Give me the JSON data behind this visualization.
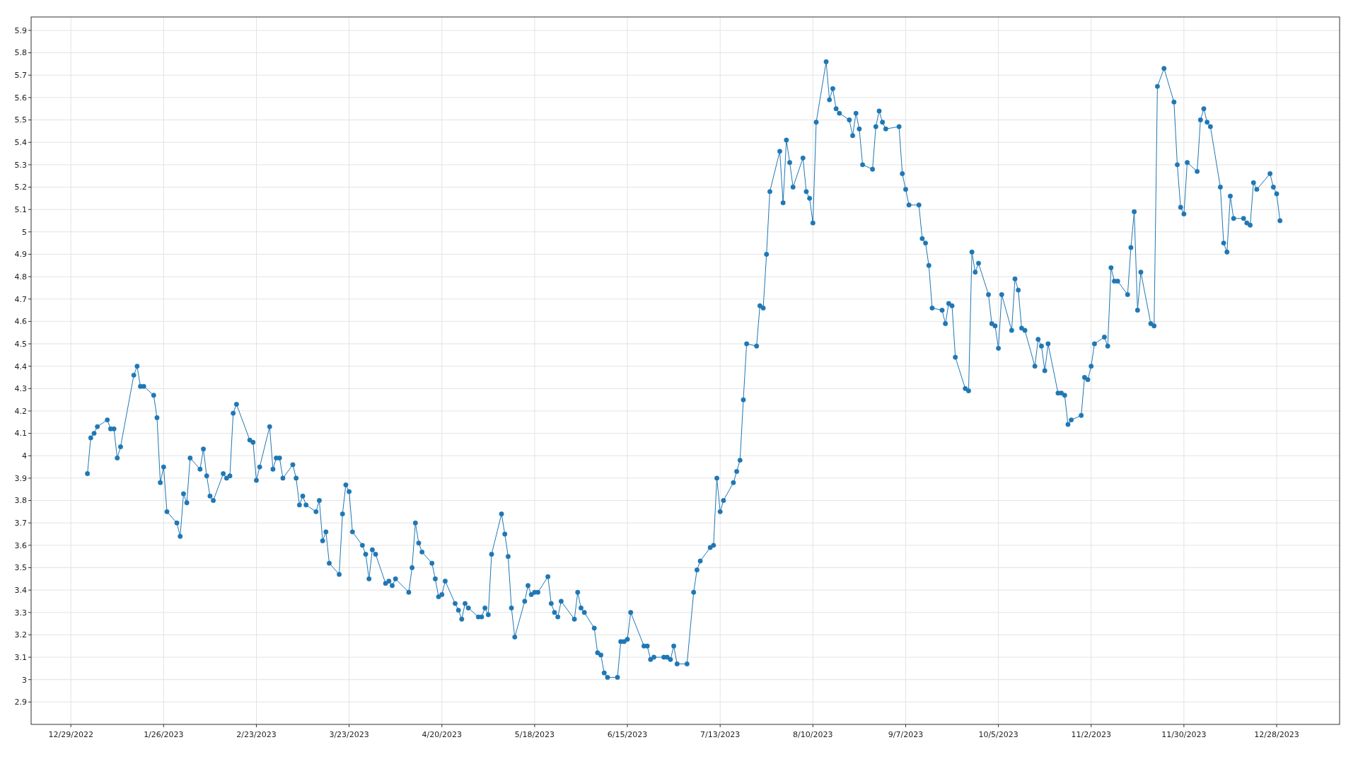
{
  "chart_data": {
    "type": "line",
    "xlim": [
      "2022-12-17",
      "2024-01-16"
    ],
    "ylim": [
      2.8,
      5.96
    ],
    "xticks": [
      {
        "value": "2022-12-29",
        "label": "12/29/2022"
      },
      {
        "value": "2023-01-26",
        "label": "1/26/2023"
      },
      {
        "value": "2023-02-23",
        "label": "2/23/2023"
      },
      {
        "value": "2023-03-23",
        "label": "3/23/2023"
      },
      {
        "value": "2023-04-20",
        "label": "4/20/2023"
      },
      {
        "value": "2023-05-18",
        "label": "5/18/2023"
      },
      {
        "value": "2023-06-15",
        "label": "6/15/2023"
      },
      {
        "value": "2023-07-13",
        "label": "7/13/2023"
      },
      {
        "value": "2023-08-10",
        "label": "8/10/2023"
      },
      {
        "value": "2023-09-07",
        "label": "9/7/2023"
      },
      {
        "value": "2023-10-05",
        "label": "10/5/2023"
      },
      {
        "value": "2023-11-02",
        "label": "11/2/2023"
      },
      {
        "value": "2023-11-30",
        "label": "11/30/2023"
      },
      {
        "value": "2023-12-28",
        "label": "12/28/2023"
      }
    ],
    "yticks": [
      2.9,
      3,
      3.1,
      3.2,
      3.3,
      3.4,
      3.5,
      3.6,
      3.7,
      3.8,
      3.9,
      4,
      4.1,
      4.2,
      4.3,
      4.4,
      4.5,
      4.6,
      4.7,
      4.8,
      4.9,
      5,
      5.1,
      5.2,
      5.3,
      5.4,
      5.5,
      5.6,
      5.7,
      5.8,
      5.9
    ],
    "grid": true,
    "marker": "circle",
    "line_style": "solid",
    "series": [
      {
        "color": "#1f77b4",
        "x": [
          "2023-01-03",
          "2023-01-04",
          "2023-01-05",
          "2023-01-06",
          "2023-01-09",
          "2023-01-10",
          "2023-01-11",
          "2023-01-12",
          "2023-01-13",
          "2023-01-17",
          "2023-01-18",
          "2023-01-19",
          "2023-01-20",
          "2023-01-23",
          "2023-01-24",
          "2023-01-25",
          "2023-01-26",
          "2023-01-27",
          "2023-01-30",
          "2023-01-31",
          "2023-02-01",
          "2023-02-02",
          "2023-02-03",
          "2023-02-06",
          "2023-02-07",
          "2023-02-08",
          "2023-02-09",
          "2023-02-10",
          "2023-02-13",
          "2023-02-14",
          "2023-02-15",
          "2023-02-16",
          "2023-02-17",
          "2023-02-21",
          "2023-02-22",
          "2023-02-23",
          "2023-02-24",
          "2023-02-27",
          "2023-02-28",
          "2023-03-01",
          "2023-03-02",
          "2023-03-03",
          "2023-03-06",
          "2023-03-07",
          "2023-03-08",
          "2023-03-09",
          "2023-03-10",
          "2023-03-13",
          "2023-03-14",
          "2023-03-15",
          "2023-03-16",
          "2023-03-17",
          "2023-03-20",
          "2023-03-21",
          "2023-03-22",
          "2023-03-23",
          "2023-03-24",
          "2023-03-27",
          "2023-03-28",
          "2023-03-29",
          "2023-03-30",
          "2023-03-31",
          "2023-04-03",
          "2023-04-04",
          "2023-04-05",
          "2023-04-06",
          "2023-04-10",
          "2023-04-11",
          "2023-04-12",
          "2023-04-13",
          "2023-04-14",
          "2023-04-17",
          "2023-04-18",
          "2023-04-19",
          "2023-04-20",
          "2023-04-21",
          "2023-04-24",
          "2023-04-25",
          "2023-04-26",
          "2023-04-27",
          "2023-04-28",
          "2023-05-01",
          "2023-05-02",
          "2023-05-03",
          "2023-05-04",
          "2023-05-05",
          "2023-05-08",
          "2023-05-09",
          "2023-05-10",
          "2023-05-11",
          "2023-05-12",
          "2023-05-15",
          "2023-05-16",
          "2023-05-17",
          "2023-05-18",
          "2023-05-19",
          "2023-05-22",
          "2023-05-23",
          "2023-05-24",
          "2023-05-25",
          "2023-05-26",
          "2023-05-30",
          "2023-05-31",
          "2023-06-01",
          "2023-06-02",
          "2023-06-05",
          "2023-06-06",
          "2023-06-07",
          "2023-06-08",
          "2023-06-09",
          "2023-06-12",
          "2023-06-13",
          "2023-06-14",
          "2023-06-15",
          "2023-06-16",
          "2023-06-20",
          "2023-06-21",
          "2023-06-22",
          "2023-06-23",
          "2023-06-26",
          "2023-06-27",
          "2023-06-28",
          "2023-06-29",
          "2023-06-30",
          "2023-07-03",
          "2023-07-05",
          "2023-07-06",
          "2023-07-07",
          "2023-07-10",
          "2023-07-11",
          "2023-07-12",
          "2023-07-13",
          "2023-07-14",
          "2023-07-17",
          "2023-07-18",
          "2023-07-19",
          "2023-07-20",
          "2023-07-21",
          "2023-07-24",
          "2023-07-25",
          "2023-07-26",
          "2023-07-27",
          "2023-07-28",
          "2023-07-31",
          "2023-08-01",
          "2023-08-02",
          "2023-08-03",
          "2023-08-04",
          "2023-08-07",
          "2023-08-08",
          "2023-08-09",
          "2023-08-10",
          "2023-08-11",
          "2023-08-14",
          "2023-08-15",
          "2023-08-16",
          "2023-08-17",
          "2023-08-18",
          "2023-08-21",
          "2023-08-22",
          "2023-08-23",
          "2023-08-24",
          "2023-08-25",
          "2023-08-28",
          "2023-08-29",
          "2023-08-30",
          "2023-08-31",
          "2023-09-01",
          "2023-09-05",
          "2023-09-06",
          "2023-09-07",
          "2023-09-08",
          "2023-09-11",
          "2023-09-12",
          "2023-09-13",
          "2023-09-14",
          "2023-09-15",
          "2023-09-18",
          "2023-09-19",
          "2023-09-20",
          "2023-09-21",
          "2023-09-22",
          "2023-09-25",
          "2023-09-26",
          "2023-09-27",
          "2023-09-28",
          "2023-09-29",
          "2023-10-02",
          "2023-10-03",
          "2023-10-04",
          "2023-10-05",
          "2023-10-06",
          "2023-10-09",
          "2023-10-10",
          "2023-10-11",
          "2023-10-12",
          "2023-10-13",
          "2023-10-16",
          "2023-10-17",
          "2023-10-18",
          "2023-10-19",
          "2023-10-20",
          "2023-10-23",
          "2023-10-24",
          "2023-10-25",
          "2023-10-26",
          "2023-10-27",
          "2023-10-30",
          "2023-10-31",
          "2023-11-01",
          "2023-11-02",
          "2023-11-03",
          "2023-11-06",
          "2023-11-07",
          "2023-11-08",
          "2023-11-09",
          "2023-11-10",
          "2023-11-13",
          "2023-11-14",
          "2023-11-15",
          "2023-11-16",
          "2023-11-17",
          "2023-11-20",
          "2023-11-21",
          "2023-11-22",
          "2023-11-24",
          "2023-11-27",
          "2023-11-28",
          "2023-11-29",
          "2023-11-30",
          "2023-12-01",
          "2023-12-04",
          "2023-12-05",
          "2023-12-06",
          "2023-12-07",
          "2023-12-08",
          "2023-12-11",
          "2023-12-12",
          "2023-12-13",
          "2023-12-14",
          "2023-12-15",
          "2023-12-18",
          "2023-12-19",
          "2023-12-20",
          "2023-12-21",
          "2023-12-22",
          "2023-12-26",
          "2023-12-27",
          "2023-12-28",
          "2023-12-29"
        ],
        "values": [
          3.92,
          4.08,
          4.1,
          4.13,
          4.16,
          4.12,
          4.12,
          3.99,
          4.04,
          4.36,
          4.4,
          4.31,
          4.31,
          4.27,
          4.17,
          3.88,
          3.95,
          3.75,
          3.7,
          3.64,
          3.83,
          3.79,
          3.99,
          3.94,
          4.03,
          3.91,
          3.82,
          3.8,
          3.92,
          3.9,
          3.91,
          4.19,
          4.23,
          4.07,
          4.06,
          3.89,
          3.95,
          4.13,
          3.94,
          3.99,
          3.99,
          3.9,
          3.96,
          3.9,
          3.78,
          3.82,
          3.78,
          3.75,
          3.8,
          3.62,
          3.66,
          3.52,
          3.47,
          3.74,
          3.87,
          3.84,
          3.66,
          3.6,
          3.56,
          3.45,
          3.58,
          3.56,
          3.43,
          3.44,
          3.42,
          3.45,
          3.39,
          3.5,
          3.7,
          3.61,
          3.57,
          3.52,
          3.45,
          3.37,
          3.38,
          3.44,
          3.34,
          3.31,
          3.27,
          3.34,
          3.32,
          3.28,
          3.28,
          3.32,
          3.29,
          3.56,
          3.74,
          3.65,
          3.55,
          3.32,
          3.19,
          3.35,
          3.42,
          3.38,
          3.39,
          3.39,
          3.46,
          3.34,
          3.3,
          3.28,
          3.35,
          3.27,
          3.39,
          3.32,
          3.3,
          3.23,
          3.12,
          3.11,
          3.03,
          3.01,
          3.01,
          3.17,
          3.17,
          3.18,
          3.3,
          3.15,
          3.15,
          3.09,
          3.1,
          3.1,
          3.1,
          3.09,
          3.15,
          3.07,
          3.07,
          3.39,
          3.49,
          3.53,
          3.59,
          3.6,
          3.9,
          3.75,
          3.8,
          3.88,
          3.93,
          3.98,
          4.25,
          4.5,
          4.49,
          4.67,
          4.66,
          4.9,
          5.18,
          5.36,
          5.13,
          5.41,
          5.31,
          5.2,
          5.33,
          5.18,
          5.15,
          5.04,
          5.49,
          5.76,
          5.59,
          5.64,
          5.55,
          5.53,
          5.5,
          5.43,
          5.53,
          5.46,
          5.3,
          5.28,
          5.47,
          5.54,
          5.49,
          5.46,
          5.47,
          5.26,
          5.19,
          5.12,
          5.12,
          4.97,
          4.95,
          4.85,
          4.66,
          4.65,
          4.59,
          4.68,
          4.67,
          4.44,
          4.3,
          4.29,
          4.91,
          4.82,
          4.86,
          4.72,
          4.59,
          4.58,
          4.48,
          4.72,
          4.56,
          4.79,
          4.74,
          4.57,
          4.56,
          4.4,
          4.52,
          4.49,
          4.38,
          4.5,
          4.28,
          4.28,
          4.27,
          4.14,
          4.16,
          4.18,
          4.35,
          4.34,
          4.4,
          4.5,
          4.53,
          4.49,
          4.84,
          4.78,
          4.78,
          4.72,
          4.93,
          5.09,
          4.65,
          4.82,
          4.59,
          4.58,
          5.65,
          5.73,
          5.58,
          5.3,
          5.11,
          5.08,
          5.31,
          5.27,
          5.5,
          5.55,
          5.49,
          5.47,
          5.2,
          4.95,
          4.91,
          5.16,
          5.06,
          5.06,
          5.04,
          5.03,
          5.22,
          5.19,
          5.26,
          5.2,
          5.17,
          5.05
        ]
      }
    ]
  }
}
